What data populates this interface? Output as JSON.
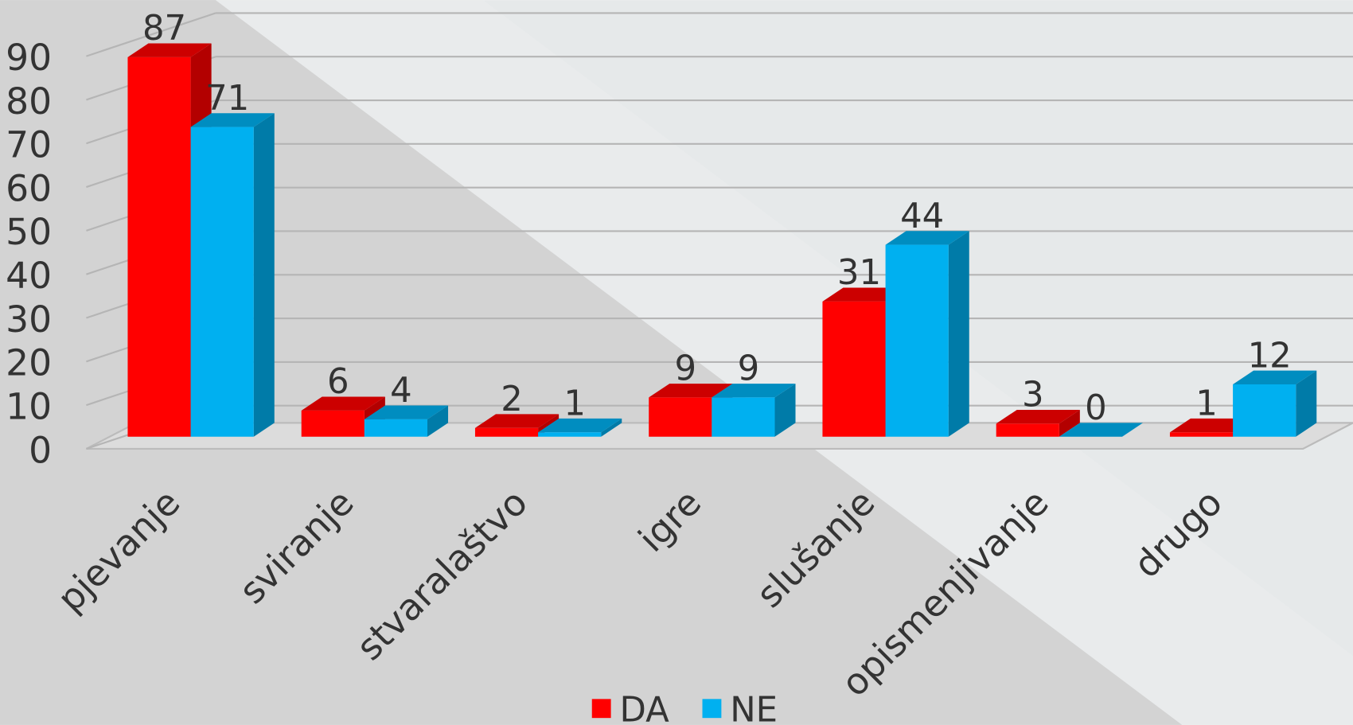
{
  "chart_data": {
    "type": "bar3d",
    "categories": [
      "pjevanje",
      "sviranje",
      "stvaralaštvo",
      "igre",
      "slušanje",
      "opismenjivanje",
      "drugo"
    ],
    "series": [
      {
        "name": "DA",
        "color": "#ff0000",
        "values": [
          87,
          6,
          2,
          9,
          31,
          3,
          1
        ]
      },
      {
        "name": "NE",
        "color": "#00b0f0",
        "values": [
          71,
          4,
          1,
          9,
          44,
          0,
          12
        ]
      }
    ],
    "ylim": [
      0,
      90
    ],
    "yticks": [
      0,
      10,
      20,
      30,
      40,
      50,
      60,
      70,
      80,
      90
    ],
    "grid": true,
    "legend": "bottom"
  }
}
